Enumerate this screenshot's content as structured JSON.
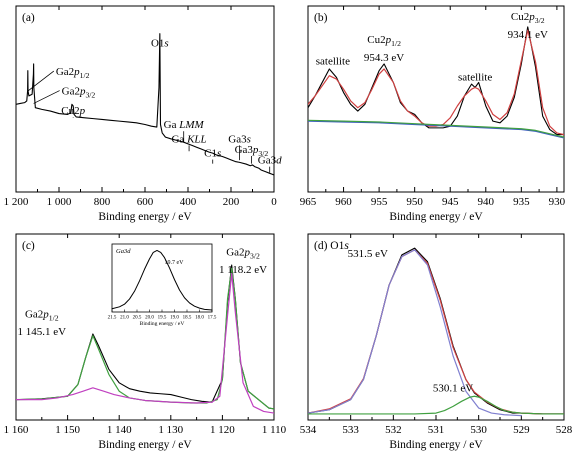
{
  "panels": [
    {
      "id": "a",
      "label": "(a)",
      "xlabel": "Binding energy / eV",
      "xlim": [
        1200,
        0
      ],
      "ylim": [
        0,
        100
      ],
      "xticks": [
        1200,
        1000,
        800,
        600,
        400,
        200,
        0
      ],
      "xtick_labels": [
        "1 200",
        "1 000",
        "800",
        "600",
        "400",
        "200",
        "0"
      ],
      "annotations": [
        {
          "text": "O1s",
          "italic_suffix": "s",
          "x": 531,
          "y": 82
        },
        {
          "text": "Ga2p1/2",
          "x": 1145,
          "y": 66
        },
        {
          "text": "Ga2p3/2",
          "x": 1118,
          "y": 55
        },
        {
          "text": "Cu2p",
          "x": 934,
          "y": 44
        },
        {
          "text": "Ga LMM",
          "x": 420,
          "y": 36
        },
        {
          "text": "Ga KLL",
          "x": 395,
          "y": 28
        },
        {
          "text": "C1s",
          "x": 285,
          "y": 20
        },
        {
          "text": "Ga3s",
          "x": 160,
          "y": 28
        },
        {
          "text": "Ga3p3/2",
          "x": 105,
          "y": 22
        },
        {
          "text": "Ga3d",
          "x": 20,
          "y": 16
        }
      ]
    },
    {
      "id": "b",
      "label": "(b)",
      "xlabel": "Binding energy / eV",
      "xlim": [
        965,
        929
      ],
      "ylim": [
        0,
        100
      ],
      "xticks": [
        965,
        960,
        955,
        950,
        945,
        940,
        935,
        930
      ],
      "xtick_labels": [
        "965",
        "960",
        "955",
        "950",
        "945",
        "940",
        "935",
        "930"
      ],
      "annotations": [
        {
          "text": "satellite",
          "x": 961.5,
          "y": 72
        },
        {
          "text": "Cu2p1/2",
          "x": 954.3,
          "y": 84
        },
        {
          "text": "954.3 eV",
          "x": 954.3,
          "y": 74
        },
        {
          "text": "satellite",
          "x": 941.5,
          "y": 63
        },
        {
          "text": "Cu2p3/2",
          "x": 934.1,
          "y": 97
        },
        {
          "text": "934.1 eV",
          "x": 934.1,
          "y": 87
        }
      ]
    },
    {
      "id": "c",
      "label": "(c)",
      "xlabel": "Binding energy / eV",
      "xlim": [
        1160,
        1110
      ],
      "ylim": [
        0,
        100
      ],
      "xticks": [
        1160,
        1150,
        1140,
        1130,
        1120,
        1110
      ],
      "xtick_labels": [
        "1 160",
        "1 150",
        "1 140",
        "1 130",
        "1 120",
        "1 110"
      ],
      "annotations": [
        {
          "text": "Ga2p1/2",
          "x": 1155,
          "y": 58
        },
        {
          "text": "1 145.1 eV",
          "x": 1155,
          "y": 48
        },
        {
          "text": "Ga2p3/2",
          "x": 1116,
          "y": 93
        },
        {
          "text": "1 118.2 eV",
          "x": 1116,
          "y": 83
        }
      ],
      "inset": {
        "title": "Ga3d",
        "value_label": "19.7 eV",
        "xlabel": "Binding energy / eV",
        "xlim": [
          21.5,
          17.5
        ],
        "xticks": [
          21.5,
          21.0,
          20.5,
          20.0,
          19.5,
          19.0,
          18.5,
          18.0,
          17.5
        ],
        "xtick_labels": [
          "21.5",
          "21.0",
          "20.5",
          "20.0",
          "19.5",
          "19.0",
          "18.5",
          "18.0",
          "17.5"
        ]
      }
    },
    {
      "id": "d",
      "label": "(d) O1s",
      "xlabel": "Binding energy / eV",
      "xlim": [
        534,
        528
      ],
      "ylim": [
        0,
        100
      ],
      "xticks": [
        534,
        533,
        532,
        531,
        530,
        529,
        528
      ],
      "xtick_labels": [
        "534",
        "533",
        "532",
        "531",
        "530",
        "529",
        "528"
      ],
      "annotations": [
        {
          "text": "531.5 eV",
          "x": 532.6,
          "y": 92
        },
        {
          "text": "530.1 eV",
          "x": 530.6,
          "y": 16
        }
      ]
    }
  ],
  "chart_data": [
    {
      "type": "line",
      "panel": "a",
      "title": "",
      "xlabel": "Binding energy / eV",
      "ylabel": "",
      "xlim": [
        1200,
        0
      ],
      "series": [
        {
          "color": "#000000",
          "x": [
            1200,
            1180,
            1160,
            1150,
            1146,
            1145,
            1144,
            1140,
            1125,
            1119,
            1118,
            1117,
            1110,
            1080,
            1040,
            1000,
            960,
            945,
            940,
            934,
            930,
            920,
            880,
            840,
            800,
            760,
            720,
            680,
            640,
            600,
            570,
            545,
            535,
            531,
            528,
            520,
            505,
            480,
            450,
            420,
            400,
            380,
            360,
            340,
            320,
            300,
            285,
            270,
            240,
            220,
            200,
            180,
            160,
            130,
            110,
            100,
            90,
            70,
            60,
            40,
            20,
            10,
            0
          ],
          "y": [
            50,
            50.5,
            51,
            52,
            58,
            70,
            58,
            55,
            56,
            68,
            74,
            60,
            48,
            47,
            46,
            44.5,
            44,
            45,
            50,
            49,
            44,
            42.5,
            42,
            41.5,
            41,
            40.5,
            40,
            39.5,
            39,
            38,
            37,
            36.5,
            60,
            92,
            38,
            33,
            30.5,
            29.5,
            28.5,
            27.5,
            26.5,
            25.5,
            24.5,
            23.5,
            22.5,
            21.5,
            21,
            20,
            19,
            18,
            17,
            16,
            15.5,
            14.5,
            13.5,
            14,
            13,
            12,
            11,
            10,
            9,
            8.5,
            8
          ]
        }
      ]
    },
    {
      "type": "line",
      "panel": "b",
      "title": "",
      "xlabel": "Binding energy / eV",
      "ylabel": "",
      "xlim": [
        965,
        929
      ],
      "series": [
        {
          "color": "#000000",
          "x": [
            965,
            964,
            963,
            962,
            961,
            960,
            959,
            958,
            957,
            956,
            955,
            954.3,
            953,
            952,
            951,
            950,
            949,
            948,
            947,
            946,
            945,
            944,
            943,
            942,
            941.5,
            941,
            940,
            939,
            938,
            937,
            936,
            935,
            934.1,
            933,
            932,
            931,
            930,
            929
          ],
          "y": [
            48,
            55,
            63,
            71,
            66,
            57,
            50,
            46,
            50,
            60,
            70,
            74,
            63,
            51,
            46,
            44,
            39,
            36,
            36,
            36,
            37,
            43,
            55,
            62,
            60,
            63,
            49,
            40,
            39,
            43,
            54,
            74,
            96,
            72,
            43,
            35,
            32,
            32
          ]
        },
        {
          "color": "#d04040",
          "x": [
            965,
            964,
            963,
            962,
            961,
            960,
            959,
            958,
            957,
            956,
            955,
            954.3,
            953,
            952,
            951,
            950,
            949,
            948,
            947,
            946,
            945,
            944,
            943,
            942,
            941.5,
            941,
            940,
            939,
            938,
            937,
            936,
            935,
            934.1,
            933,
            932,
            931,
            930,
            929
          ],
          "y": [
            50,
            55,
            61,
            67,
            65,
            59,
            52,
            48,
            51,
            59,
            68,
            71,
            63,
            52,
            46,
            43,
            39,
            37,
            37,
            38,
            42,
            49,
            55,
            59,
            60,
            59,
            52,
            44,
            41,
            45,
            56,
            76,
            94,
            75,
            48,
            37,
            33,
            32
          ]
        },
        {
          "color": "#4060c0",
          "x": [
            965,
            960,
            955,
            950,
            945,
            940,
            935,
            933,
            930,
            929
          ],
          "y": [
            40,
            39.5,
            39,
            38,
            37,
            36,
            35,
            34,
            31,
            30
          ]
        },
        {
          "color": "#40a040",
          "x": [
            965,
            960,
            955,
            950,
            945,
            940,
            935,
            933,
            930,
            929
          ],
          "y": [
            40.5,
            40,
            39.5,
            38.5,
            37.5,
            36.5,
            35.5,
            34.5,
            31.5,
            30.5
          ]
        }
      ]
    },
    {
      "type": "line",
      "panel": "c",
      "title": "",
      "xlabel": "Binding energy / eV",
      "ylabel": "",
      "xlim": [
        1160,
        1110
      ],
      "series": [
        {
          "color": "#000000",
          "x": [
            1160,
            1155,
            1150,
            1148,
            1146.5,
            1145.1,
            1144,
            1142,
            1140,
            1138,
            1136,
            1134,
            1132,
            1130,
            1128,
            1126,
            1124,
            1122,
            1120,
            1119,
            1118.2,
            1117.5,
            1116.5,
            1115,
            1113,
            1111,
            1110
          ],
          "y": [
            10,
            10.5,
            12,
            19,
            35,
            49,
            42,
            28,
            20,
            16.5,
            15,
            14,
            13.5,
            13,
            11.5,
            10,
            9,
            8.5,
            22,
            68,
            90,
            70,
            32,
            15,
            10,
            5,
            4.5
          ]
        },
        {
          "color": "#40a040",
          "x": [
            1160,
            1155,
            1150,
            1148,
            1146.5,
            1145.1,
            1144,
            1142,
            1140,
            1138,
            1135,
            1130,
            1126,
            1123,
            1121,
            1120,
            1119,
            1118.2,
            1117.5,
            1116.5,
            1115,
            1113,
            1111,
            1110
          ],
          "y": [
            10,
            10.3,
            12,
            19,
            35,
            48,
            40,
            25,
            15,
            11,
            9.5,
            8.5,
            8,
            8,
            10,
            22,
            70,
            88,
            70,
            32,
            15,
            10,
            5,
            4.5
          ]
        },
        {
          "color": "#c040c0",
          "x": [
            1160,
            1155,
            1152,
            1149,
            1147,
            1145.1,
            1143,
            1141,
            1138,
            1135,
            1130,
            1125,
            1122,
            1120.5,
            1119,
            1118.2,
            1117.5,
            1116,
            1114,
            1112,
            1110
          ],
          "y": [
            10,
            10,
            11,
            13,
            15,
            17,
            15,
            13,
            11,
            9.5,
            8.5,
            8,
            8.5,
            12,
            60,
            85,
            62,
            20,
            6,
            3,
            2
          ]
        }
      ],
      "inset": {
        "type": "line",
        "title": "Ga3d",
        "xlabel": "Binding energy / eV",
        "xlim": [
          21.5,
          17.5
        ],
        "series": [
          {
            "color": "#000000",
            "x": [
              21.5,
              21.2,
              21.0,
              20.8,
              20.6,
              20.4,
              20.2,
              20.0,
              19.85,
              19.7,
              19.55,
              19.4,
              19.2,
              19.0,
              18.8,
              18.6,
              18.4,
              18.2,
              18.0,
              17.8,
              17.5
            ],
            "y": [
              5,
              8,
              12,
              20,
              32,
              48,
              66,
              82,
              92,
              95,
              92,
              84,
              68,
              50,
              34,
              22,
              14,
              9,
              6,
              4,
              3
            ]
          }
        ]
      }
    },
    {
      "type": "line",
      "panel": "d",
      "title": "",
      "xlabel": "Binding energy / eV",
      "ylabel": "",
      "xlim": [
        534,
        528
      ],
      "series": [
        {
          "color": "#000000",
          "x": [
            534,
            533.5,
            533,
            532.7,
            532.4,
            532.1,
            531.8,
            531.5,
            531.2,
            530.9,
            530.6,
            530.3,
            530.1,
            529.8,
            529.5,
            529.2,
            529,
            528.5,
            528
          ],
          "y": [
            2,
            4,
            10,
            22,
            48,
            78,
            96,
            100,
            92,
            70,
            42,
            22,
            14,
            8,
            4,
            2,
            2,
            1.5,
            1.5
          ]
        },
        {
          "color": "#d04040",
          "x": [
            534,
            533.5,
            533,
            532.7,
            532.4,
            532.1,
            531.8,
            531.5,
            531.2,
            530.9,
            530.6,
            530.3,
            530.1,
            529.8,
            529.5,
            529.2,
            529,
            528.5,
            528
          ],
          "y": [
            2,
            4.5,
            10.5,
            22.5,
            48,
            78,
            95,
            99,
            91,
            69,
            41,
            22,
            14.5,
            8.5,
            4.5,
            2.5,
            2,
            1.5,
            1.5
          ]
        },
        {
          "color": "#8080d0",
          "x": [
            534,
            533.5,
            533,
            532.7,
            532.4,
            532.1,
            531.8,
            531.5,
            531.2,
            530.9,
            530.6,
            530.3,
            530,
            529.7,
            529.4,
            529
          ],
          "y": [
            2,
            4,
            10,
            22,
            48,
            78,
            95,
            99,
            90,
            65,
            36,
            15,
            5,
            2,
            1,
            0.5
          ]
        },
        {
          "color": "#40a040",
          "x": [
            534,
            531.5,
            531,
            530.8,
            530.6,
            530.4,
            530.2,
            530.1,
            530,
            529.8,
            529.6,
            529.4,
            529.2,
            529,
            528.5,
            528
          ],
          "y": [
            1.5,
            1.5,
            2,
            3.5,
            6,
            9,
            11.5,
            12,
            11.5,
            9,
            6,
            3.5,
            2.5,
            2,
            1.5,
            1.5
          ]
        }
      ]
    }
  ]
}
